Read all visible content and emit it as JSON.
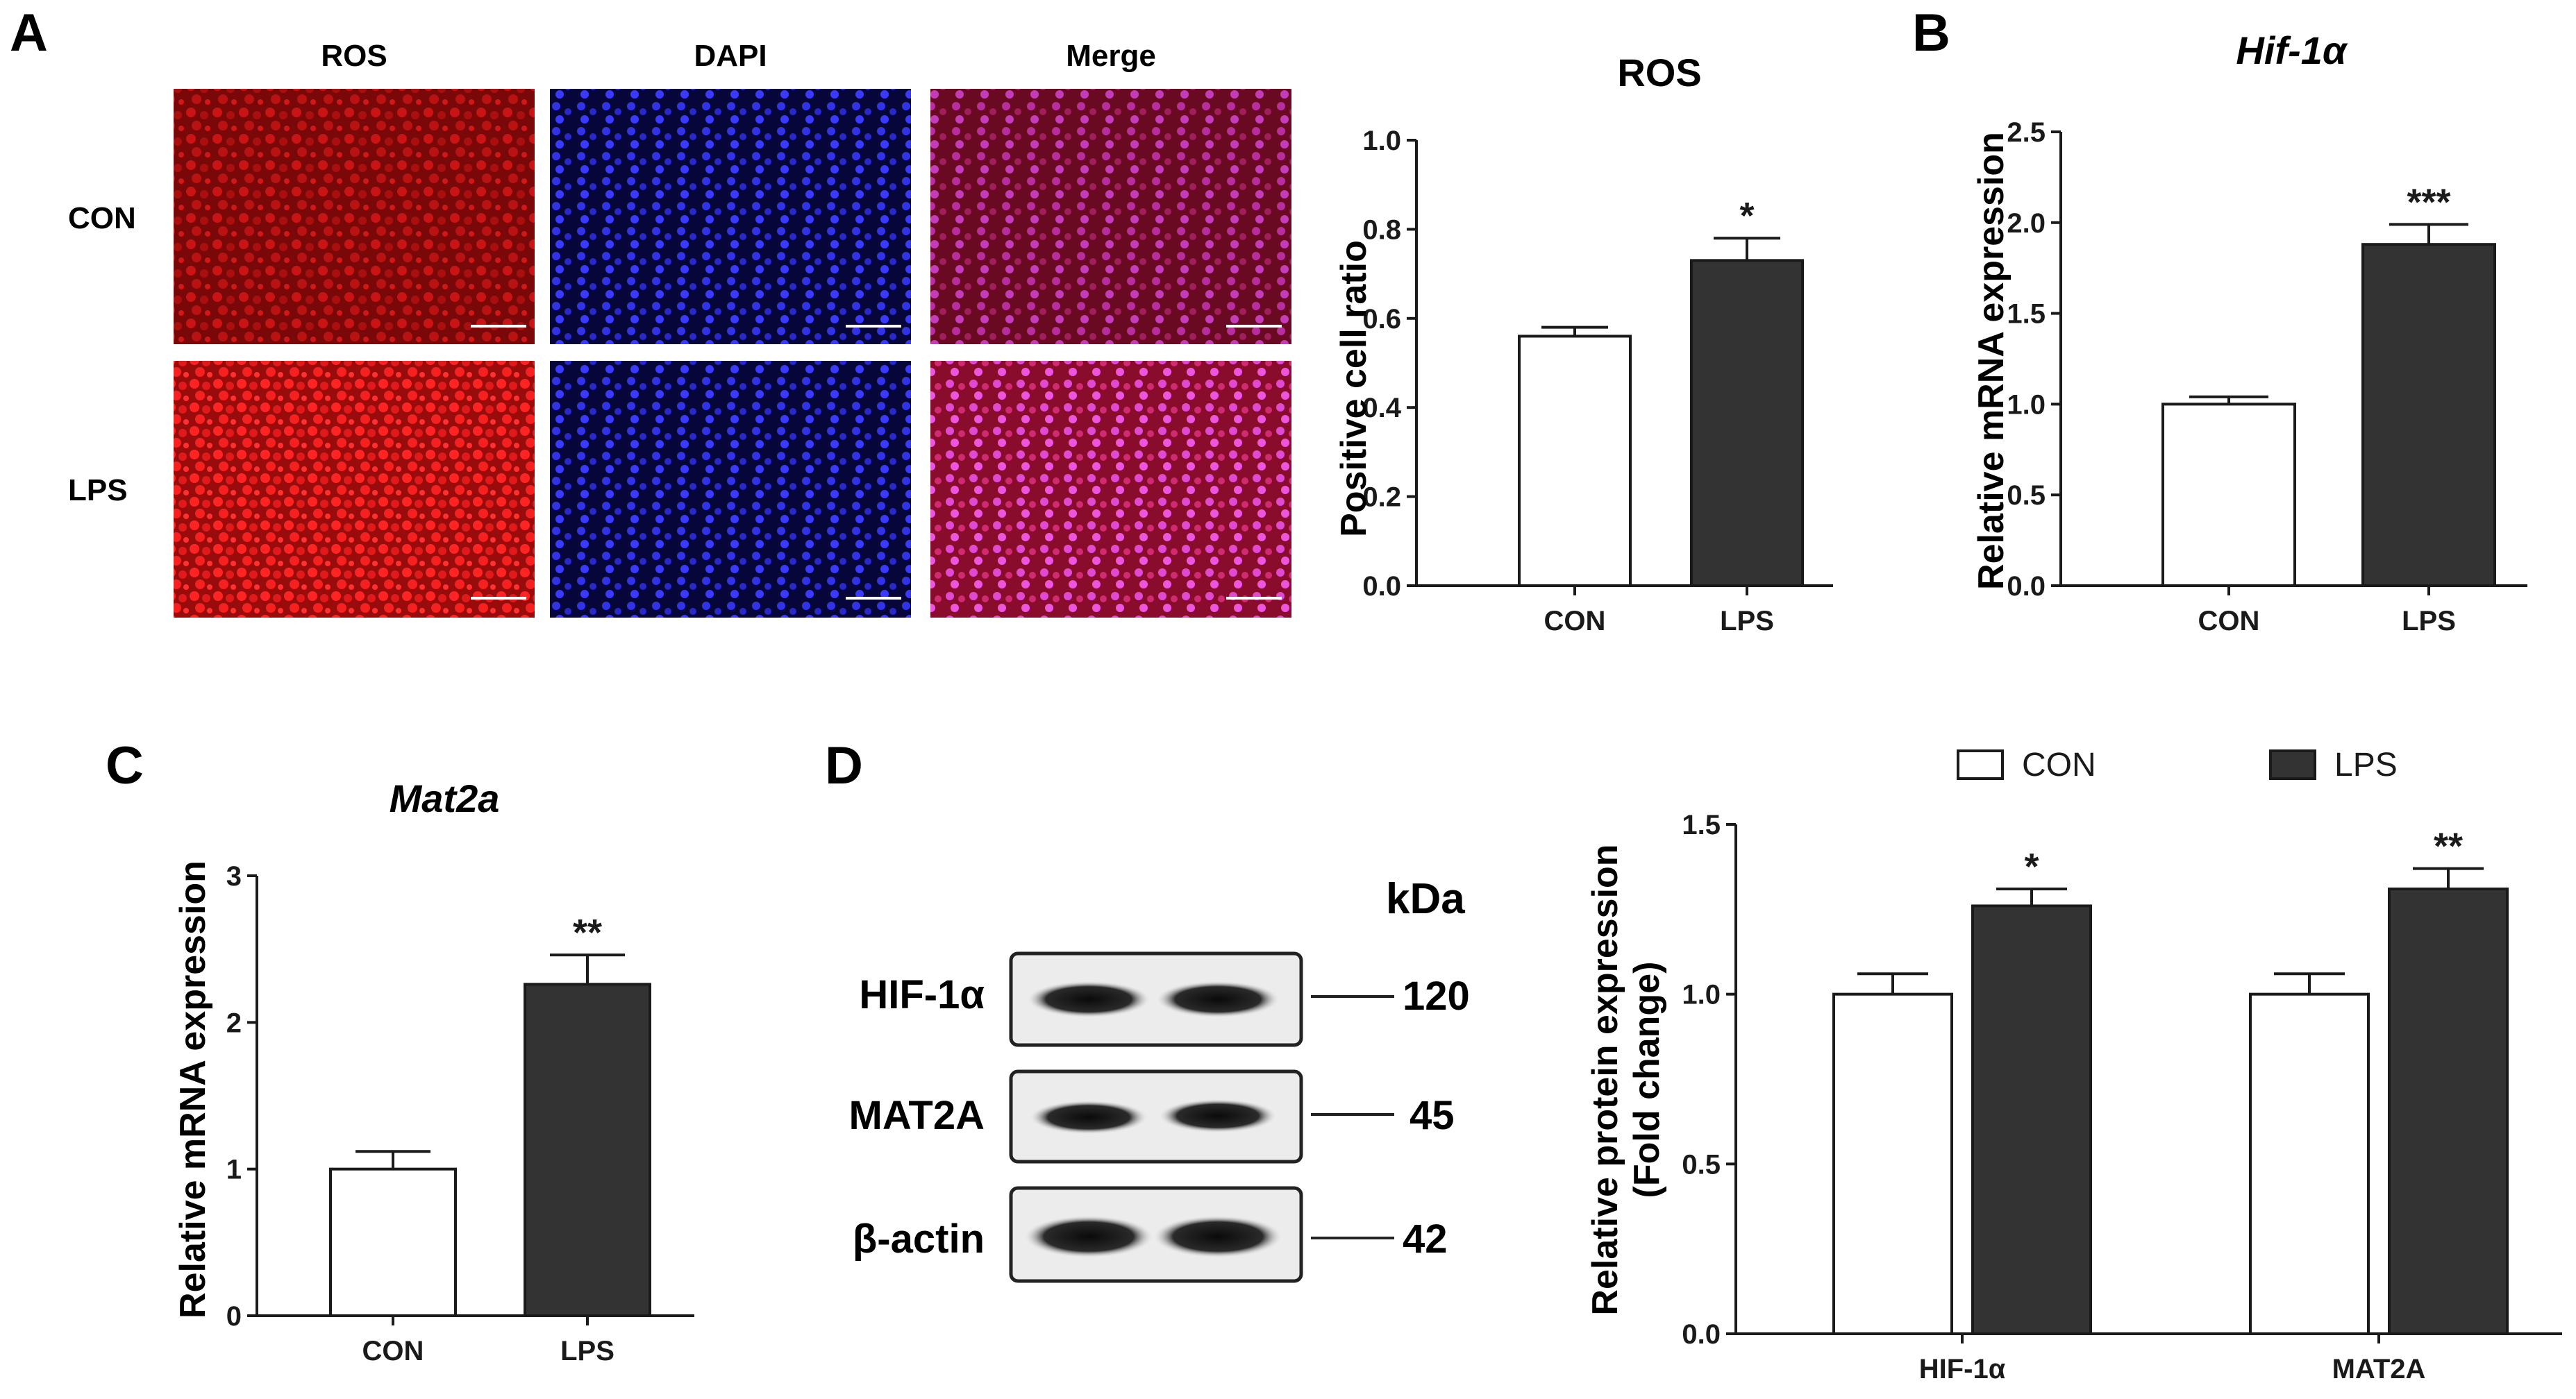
{
  "panels": {
    "A": {
      "letter": "A",
      "micro": {
        "column_labels": [
          "ROS",
          "DAPI",
          "Merge"
        ],
        "row_labels": [
          "CON",
          "LPS"
        ]
      },
      "chart": {
        "title": "ROS",
        "ylabel": "Positive cell ratio",
        "yticks": [
          "0.0",
          "0.2",
          "0.4",
          "0.6",
          "0.8",
          "1.0"
        ]
      }
    },
    "B": {
      "letter": "B",
      "title": "Hif-1α",
      "ylabel": "Relative mRNA expression",
      "yticks": [
        "0.0",
        "0.5",
        "1.0",
        "1.5",
        "2.0",
        "2.5"
      ]
    },
    "C": {
      "letter": "C",
      "title": "Mat2a",
      "ylabel": "Relative mRNA expression",
      "yticks": [
        "0",
        "1",
        "2",
        "3"
      ]
    },
    "D": {
      "letter": "D",
      "blot": {
        "kda_label": "kDa",
        "proteins": [
          "HIF-1α",
          "MAT2A",
          "β-actin"
        ],
        "kda": [
          "120",
          "45",
          "42"
        ]
      },
      "chart": {
        "ylabel_line1": "Relative protein expression",
        "ylabel_line2": "(Fold change)",
        "yticks": [
          "0.0",
          "0.5",
          "1.0",
          "1.5"
        ]
      }
    }
  },
  "colors": {
    "con_fill": "#ffffff",
    "lps_fill": "#333333",
    "stroke": "#1a1a1a"
  },
  "chart_data": [
    {
      "type": "bar",
      "panel": "A",
      "title": "ROS",
      "xlabel": "",
      "ylabel": "Positive cell ratio",
      "categories": [
        "CON",
        "LPS"
      ],
      "values": [
        0.56,
        0.73
      ],
      "errors": [
        0.02,
        0.05
      ],
      "significance": [
        "",
        "*"
      ],
      "ylim": [
        0,
        1.0
      ]
    },
    {
      "type": "bar",
      "panel": "B",
      "title": "Hif-1α",
      "xlabel": "",
      "ylabel": "Relative mRNA expression",
      "categories": [
        "CON",
        "LPS"
      ],
      "values": [
        1.0,
        1.88
      ],
      "errors": [
        0.04,
        0.11
      ],
      "significance": [
        "",
        "***"
      ],
      "ylim": [
        0,
        2.5
      ]
    },
    {
      "type": "bar",
      "panel": "C",
      "title": "Mat2a",
      "xlabel": "",
      "ylabel": "Relative mRNA expression",
      "categories": [
        "CON",
        "LPS"
      ],
      "values": [
        1.0,
        2.26
      ],
      "errors": [
        0.12,
        0.2
      ],
      "significance": [
        "",
        "**"
      ],
      "ylim": [
        0,
        3
      ]
    },
    {
      "type": "bar",
      "panel": "D",
      "title": "",
      "xlabel": "",
      "ylabel": "Relative protein expression (Fold change)",
      "categories": [
        "HIF-1α",
        "MAT2A"
      ],
      "series": [
        {
          "name": "CON",
          "values": [
            1.0,
            1.0
          ],
          "errors": [
            0.06,
            0.06
          ],
          "significance": [
            "",
            ""
          ]
        },
        {
          "name": "LPS",
          "values": [
            1.26,
            1.31
          ],
          "errors": [
            0.05,
            0.06
          ],
          "significance": [
            "*",
            "**"
          ]
        }
      ],
      "legend": "top",
      "ylim": [
        0,
        1.5
      ]
    }
  ]
}
